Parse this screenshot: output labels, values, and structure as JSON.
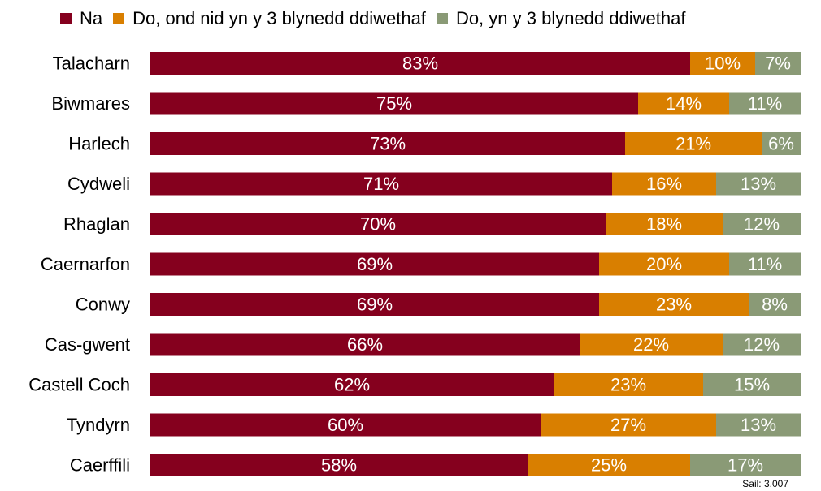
{
  "legend": [
    {
      "label": "Na",
      "color": "#85001e"
    },
    {
      "label": "Do, ond nid yn y 3 blynedd ddiwethaf",
      "color": "#d97f00"
    },
    {
      "label": "Do, yn y 3 blynedd ddiwethaf",
      "color": "#8a9a76"
    }
  ],
  "source_note": "Sail: 3.007",
  "chart_data": {
    "type": "bar",
    "orientation": "horizontal",
    "stacked": true,
    "percent_stacked": true,
    "categories": [
      "Talacharn",
      "Biwmares",
      "Harlech",
      "Cydweli",
      "Rhaglan",
      "Caernarfon",
      "Conwy",
      "Cas-gwent",
      "Castell Coch",
      "Tyndyrn",
      "Caerffili"
    ],
    "series": [
      {
        "name": "Na",
        "color": "#85001e",
        "values": [
          83,
          75,
          73,
          71,
          70,
          69,
          69,
          66,
          62,
          60,
          58
        ]
      },
      {
        "name": "Do, ond nid yn y 3 blynedd ddiwethaf",
        "color": "#d97f00",
        "values": [
          10,
          14,
          21,
          16,
          18,
          20,
          23,
          22,
          23,
          27,
          25
        ]
      },
      {
        "name": "Do, yn y 3 blynedd ddiwethaf",
        "color": "#8a9a76",
        "values": [
          7,
          11,
          6,
          13,
          12,
          11,
          8,
          12,
          15,
          13,
          17
        ]
      }
    ],
    "value_suffix": "%",
    "legend_position": "top",
    "grid": false
  }
}
